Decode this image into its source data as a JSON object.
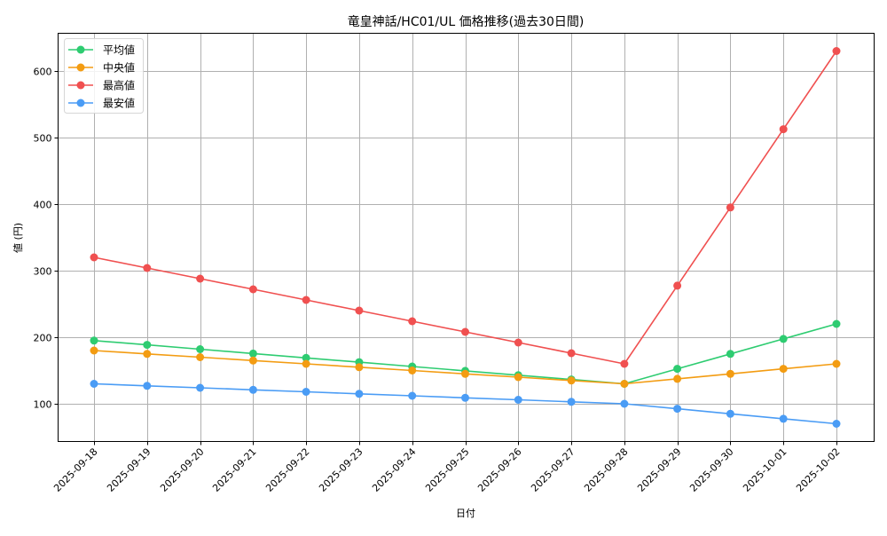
{
  "chart_data": {
    "type": "line",
    "title": "竜皇神話/HC01/UL 価格推移(過去30日間)",
    "xlabel": "日付",
    "ylabel": "値 (円)",
    "x": [
      "2025-09-18",
      "2025-09-19",
      "2025-09-20",
      "2025-09-21",
      "2025-09-22",
      "2025-09-23",
      "2025-09-24",
      "2025-09-25",
      "2025-09-26",
      "2025-09-27",
      "2025-09-28",
      "2025-09-29",
      "2025-09-30",
      "2025-10-01",
      "2025-10-02"
    ],
    "yticks": [
      100,
      200,
      300,
      400,
      500,
      600
    ],
    "ylim": [
      40,
      652
    ],
    "grid": true,
    "legend_position": "upper left",
    "series": [
      {
        "name": "平均値",
        "color": "#2ecc71",
        "values": [
          195,
          188.5,
          182,
          175.5,
          169,
          162.5,
          156,
          149.5,
          143,
          136.5,
          130,
          152.5,
          175,
          197.5,
          220
        ]
      },
      {
        "name": "中央値",
        "color": "#f39c12",
        "values": [
          180,
          175,
          170,
          165,
          160,
          155,
          150,
          145,
          140,
          135,
          130,
          137.5,
          145,
          152.5,
          160
        ]
      },
      {
        "name": "最高値",
        "color": "#f05050",
        "values": [
          320,
          304,
          288,
          272,
          256,
          240,
          224,
          208,
          192,
          176,
          160,
          277.5,
          395,
          512.5,
          630
        ]
      },
      {
        "name": "最安値",
        "color": "#4a9cf5",
        "values": [
          130,
          127,
          124,
          121,
          118,
          115,
          112,
          109,
          106,
          103,
          100,
          92.5,
          85,
          77.5,
          70
        ]
      }
    ]
  }
}
